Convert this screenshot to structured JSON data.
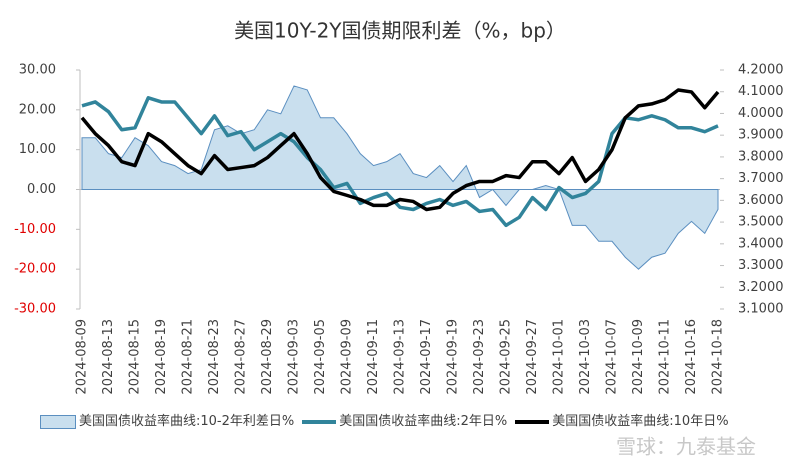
{
  "chart_data": {
    "type": "line",
    "title": "美国10Y-2Y国债期限利差（%，bp）",
    "watermark": "雪球：九泰基金",
    "categories": [
      "2024-08-09",
      null,
      "2024-08-13",
      null,
      "2024-08-15",
      null,
      "2024-08-19",
      null,
      "2024-08-21",
      null,
      "2024-08-23",
      null,
      "2024-08-27",
      null,
      "2024-08-29",
      null,
      "2024-09-03",
      null,
      "2024-09-05",
      null,
      "2024-09-09",
      null,
      "2024-09-11",
      null,
      "2024-09-13",
      null,
      "2024-09-17",
      null,
      "2024-09-19",
      null,
      "2024-09-23",
      null,
      "2024-09-25",
      null,
      "2024-09-27",
      null,
      "2024-10-01",
      null,
      "2024-10-03",
      null,
      "2024-10-07",
      null,
      "2024-10-09",
      null,
      "2024-10-11",
      null,
      "2024-10-16",
      null,
      "2024-10-18"
    ],
    "series": [
      {
        "name": "美国国债收益率曲线:10-2年利差日%",
        "type": "area",
        "color": "#c9dfee",
        "stroke": "#5b8fc0",
        "values": [
          13,
          13,
          9,
          8,
          13,
          11,
          7,
          6,
          4,
          5,
          15,
          16,
          14,
          15,
          20,
          19,
          26,
          25,
          18,
          18,
          14,
          9,
          6,
          7,
          9,
          4,
          3,
          6,
          2,
          6,
          -2,
          0,
          -4,
          0,
          0,
          1,
          0,
          -9,
          -9,
          -13,
          -13,
          -17,
          -20,
          -17,
          -16,
          -11,
          -8,
          -11,
          -5
        ]
      },
      {
        "name": "美国国债收益率曲线:2年日%",
        "type": "line",
        "axis": "y2",
        "color": "#31849b",
        "values": [
          4.035,
          4.053,
          4.008,
          3.925,
          3.934,
          4.072,
          4.053,
          4.053,
          3.98,
          3.907,
          3.989,
          3.898,
          3.916,
          3.833,
          3.87,
          3.907,
          3.87,
          3.797,
          3.742,
          3.659,
          3.678,
          3.586,
          3.613,
          3.632,
          3.568,
          3.558,
          3.586,
          3.604,
          3.577,
          3.595,
          3.549,
          3.558,
          3.485,
          3.522,
          3.613,
          3.558,
          3.659,
          3.613,
          3.632,
          3.687,
          3.907,
          3.98,
          3.971,
          3.989,
          3.971,
          3.934,
          3.934,
          3.916,
          3.943
        ]
      },
      {
        "name": "美国国债收益率曲线:10年日%",
        "type": "line",
        "axis": "y2",
        "color": "#000000",
        "values": [
          3.98,
          3.907,
          3.852,
          3.778,
          3.76,
          3.907,
          3.87,
          3.815,
          3.76,
          3.723,
          3.806,
          3.742,
          3.751,
          3.76,
          3.797,
          3.852,
          3.907,
          3.815,
          3.705,
          3.641,
          3.623,
          3.604,
          3.577,
          3.577,
          3.604,
          3.595,
          3.558,
          3.568,
          3.632,
          3.668,
          3.687,
          3.687,
          3.714,
          3.705,
          3.778,
          3.778,
          3.723,
          3.797,
          3.687,
          3.742,
          3.833,
          3.98,
          4.035,
          4.044,
          4.063,
          4.108,
          4.099,
          4.026,
          4.099
        ]
      }
    ],
    "ylim": [
      -30,
      30
    ],
    "yticks": [
      {
        "value": -30,
        "label": "-30.00"
      },
      {
        "value": -20,
        "label": "-20.00"
      },
      {
        "value": -10,
        "label": "-10.00"
      },
      {
        "value": 0,
        "label": "0.00"
      },
      {
        "value": 10,
        "label": "10.00"
      },
      {
        "value": 20,
        "label": "20.00"
      },
      {
        "value": 30,
        "label": "30.00"
      }
    ],
    "negative_tick_color": "#e00000",
    "y2lim": [
      3.1,
      4.2
    ],
    "y2ticks": [
      {
        "value": 3.1,
        "label": "3.1000"
      },
      {
        "value": 3.2,
        "label": "3.2000"
      },
      {
        "value": 3.3,
        "label": "3.3000"
      },
      {
        "value": 3.4,
        "label": "3.4000"
      },
      {
        "value": 3.5,
        "label": "3.5000"
      },
      {
        "value": 3.6,
        "label": "3.6000"
      },
      {
        "value": 3.7,
        "label": "3.7000"
      },
      {
        "value": 3.8,
        "label": "3.8000"
      },
      {
        "value": 3.9,
        "label": "3.9000"
      },
      {
        "value": 4.0,
        "label": "4.0000"
      },
      {
        "value": 4.1,
        "label": "4.1000"
      },
      {
        "value": 4.2,
        "label": "4.2000"
      }
    ],
    "grid": false
  }
}
